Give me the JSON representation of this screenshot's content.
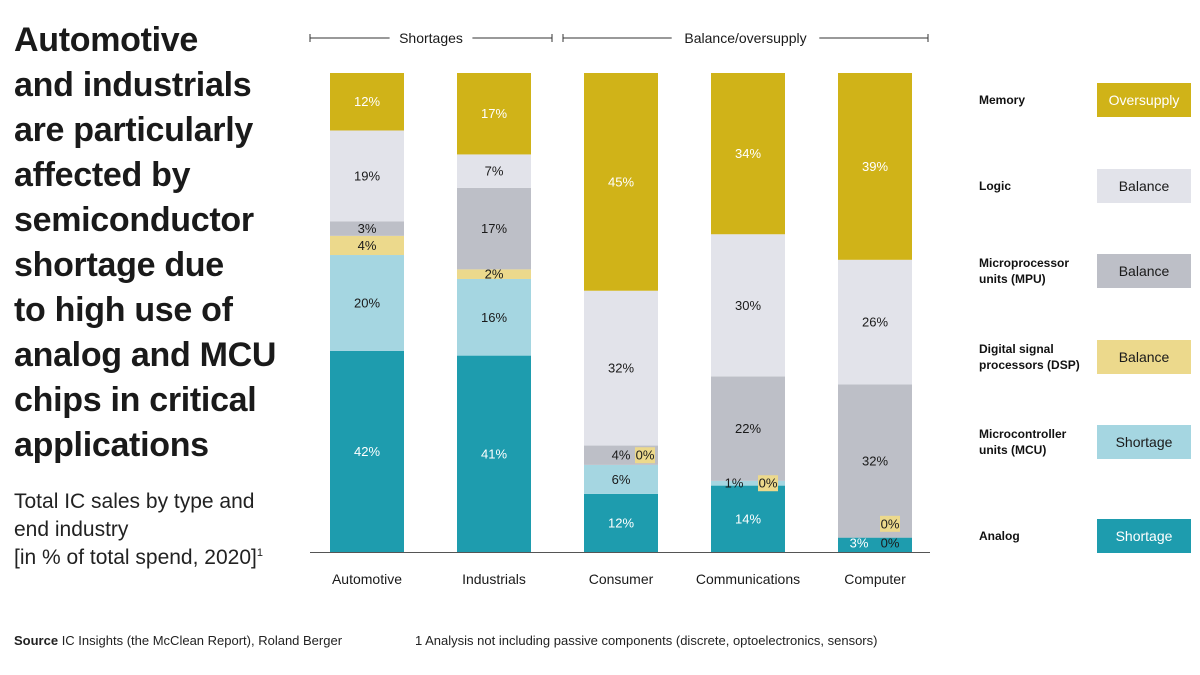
{
  "title_lines": [
    "Automotive",
    "and industrials",
    "are particularly",
    "affected by",
    "semiconductor",
    "shortage due",
    "to high use of",
    "analog and MCU",
    "chips in critical",
    "applications"
  ],
  "subtitle_lines": [
    "Total IC sales by type and",
    "end industry",
    "[in % of total spend, 2020]"
  ],
  "subtitle_footnote_mark": "1",
  "source_label": "Source",
  "source_text": " IC Insights (the McClean Report), Roland Berger",
  "footnote": "1   Analysis not including passive components (discrete, optoelectronics, sensors)",
  "colors": {
    "memory": "#d0b318",
    "logic": "#e2e3ea",
    "mpu": "#bdbfc7",
    "dsp": "#ecd98c",
    "mcu": "#a5d6e1",
    "analog": "#1e9cae"
  },
  "legend": [
    {
      "label_lines": [
        "Memory"
      ],
      "status": "Oversupply",
      "color": "#d0b318",
      "text_color": "#ffffff"
    },
    {
      "label_lines": [
        "Logic"
      ],
      "status": "Balance",
      "color": "#e2e3ea",
      "text_color": "#1a1a1a"
    },
    {
      "label_lines": [
        "Microprocessor",
        "units (MPU)"
      ],
      "status": "Balance",
      "color": "#bdbfc7",
      "text_color": "#1a1a1a"
    },
    {
      "label_lines": [
        "Digital signal",
        "processors (DSP)"
      ],
      "status": "Balance",
      "color": "#ecd98c",
      "text_color": "#1a1a1a"
    },
    {
      "label_lines": [
        "Microcontroller",
        "units (MCU)"
      ],
      "status": "Shortage",
      "color": "#a5d6e1",
      "text_color": "#1a1a1a"
    },
    {
      "label_lines": [
        "Analog"
      ],
      "status": "Shortage",
      "color": "#1e9cae",
      "text_color": "#ffffff"
    }
  ],
  "chart_data": {
    "type": "bar",
    "stacked": true,
    "categories": [
      "Automotive",
      "Industrials",
      "Consumer",
      "Communications",
      "Computer"
    ],
    "groups": [
      {
        "label": "Shortages",
        "categories": [
          "Automotive",
          "Industrials"
        ]
      },
      {
        "label": "Balance/oversupply",
        "categories": [
          "Consumer",
          "Communications",
          "Computer"
        ]
      }
    ],
    "series": [
      {
        "name": "Analog",
        "values": [
          42,
          41,
          12,
          14,
          3
        ]
      },
      {
        "name": "Microcontroller units (MCU)",
        "values": [
          20,
          16,
          6,
          1,
          0
        ]
      },
      {
        "name": "Digital signal processors (DSP)",
        "values": [
          4,
          2,
          0,
          0,
          0
        ]
      },
      {
        "name": "Microprocessor units (MPU)",
        "values": [
          3,
          17,
          4,
          22,
          32
        ]
      },
      {
        "name": "Logic",
        "values": [
          19,
          7,
          32,
          30,
          26
        ]
      },
      {
        "name": "Memory",
        "values": [
          12,
          17,
          45,
          34,
          39
        ]
      }
    ],
    "value_suffix": "%",
    "ylim": [
      0,
      100
    ],
    "grid": false,
    "legend_position": "right"
  }
}
